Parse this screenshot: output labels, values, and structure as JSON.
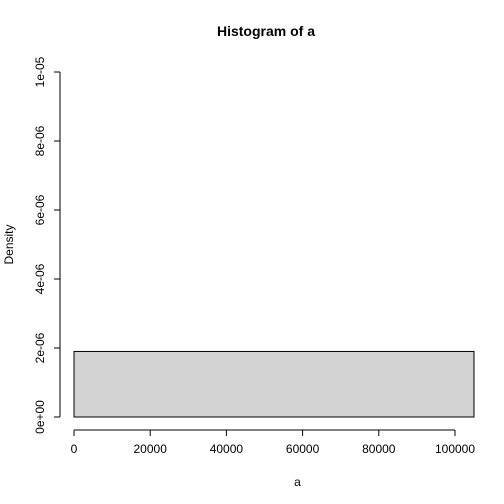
{
  "chart_data": {
    "type": "bar",
    "title": "Histogram of a",
    "xlabel": "a",
    "ylabel": "Density",
    "xlim": [
      0,
      104000
    ],
    "ylim": [
      0,
      1e-05
    ],
    "x_ticks": [
      0,
      20000,
      40000,
      60000,
      80000,
      100000
    ],
    "x_tick_labels": [
      "0",
      "20000",
      "40000",
      "60000",
      "80000",
      "100000"
    ],
    "y_ticks": [
      0,
      2e-06,
      4e-06,
      6e-06,
      8e-06,
      1e-05
    ],
    "y_tick_labels": [
      "0e+00",
      "2e-06",
      "4e-06",
      "6e-06",
      "8e-06",
      "1e-05"
    ],
    "bins": [
      {
        "x0": 0,
        "x1": 105000,
        "density": 1.9e-06
      }
    ],
    "colors": {
      "bar_fill": "#d3d3d3",
      "bar_stroke": "#000000",
      "axis": "#000000",
      "background": "#ffffff"
    }
  }
}
